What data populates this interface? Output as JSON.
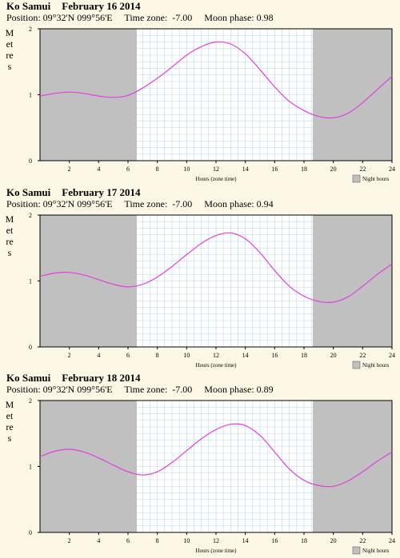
{
  "legend_label": "Night hours",
  "colors": {
    "background": "#fdf8e6",
    "night": "#c0c0c0",
    "grid": "#b8d4ef",
    "curve": "#e040e0"
  },
  "chart_data": [
    {
      "type": "line",
      "place": "Ko Samui",
      "date": "February 16 2014",
      "position": "Position: 09°32'N 099°56'E",
      "timezone": "Time zone:  -7.00",
      "moon": "Moon phase: 0.98",
      "xlabel": "Hours (zone time)",
      "ylabel": "Metres",
      "xlim": [
        0,
        24
      ],
      "ylim": [
        0,
        2
      ],
      "x_ticks": [
        2,
        4,
        6,
        8,
        10,
        12,
        14,
        16,
        18,
        20,
        22,
        24
      ],
      "y_ticks": [
        0,
        1,
        2
      ],
      "night": [
        [
          0,
          6.6
        ],
        [
          18.6,
          24
        ]
      ],
      "series": [
        {
          "x": [
            0,
            1,
            2,
            3,
            4,
            5,
            6,
            7,
            8,
            9,
            10,
            11,
            12,
            13,
            14,
            15,
            16,
            17,
            18,
            19,
            20,
            21,
            22,
            23,
            24
          ],
          "y": [
            0.98,
            1.02,
            1.04,
            1.02,
            0.98,
            0.96,
            0.99,
            1.1,
            1.25,
            1.42,
            1.6,
            1.73,
            1.8,
            1.77,
            1.62,
            1.38,
            1.12,
            0.9,
            0.76,
            0.67,
            0.65,
            0.72,
            0.88,
            1.08,
            1.28
          ]
        }
      ]
    },
    {
      "type": "line",
      "place": "Ko Samui",
      "date": "February 17 2014",
      "position": "Position: 09°32'N 099°56'E",
      "timezone": "Time zone:  -7.00",
      "moon": "Moon phase: 0.94",
      "xlabel": "Hours (zone time)",
      "ylabel": "Metres",
      "xlim": [
        0,
        24
      ],
      "ylim": [
        0,
        2
      ],
      "x_ticks": [
        2,
        4,
        6,
        8,
        10,
        12,
        14,
        16,
        18,
        20,
        22,
        24
      ],
      "y_ticks": [
        0,
        1,
        2
      ],
      "night": [
        [
          0,
          6.6
        ],
        [
          18.6,
          24
        ]
      ],
      "series": [
        {
          "x": [
            0,
            1,
            2,
            3,
            4,
            5,
            6,
            7,
            8,
            9,
            10,
            11,
            12,
            13,
            14,
            15,
            16,
            17,
            18,
            19,
            20,
            21,
            22,
            23,
            24
          ],
          "y": [
            1.07,
            1.12,
            1.13,
            1.09,
            1.02,
            0.95,
            0.91,
            0.95,
            1.06,
            1.22,
            1.4,
            1.57,
            1.69,
            1.73,
            1.64,
            1.43,
            1.16,
            0.92,
            0.77,
            0.69,
            0.68,
            0.76,
            0.92,
            1.1,
            1.26
          ]
        }
      ]
    },
    {
      "type": "line",
      "place": "Ko Samui",
      "date": "February 18 2014",
      "position": "Position: 09°32'N 099°56'E",
      "timezone": "Time zone:  -7.00",
      "moon": "Moon phase: 0.89",
      "xlabel": "Hours (zone time)",
      "ylabel": "Metres",
      "xlim": [
        0,
        24
      ],
      "ylim": [
        0,
        2
      ],
      "x_ticks": [
        2,
        4,
        6,
        8,
        10,
        12,
        14,
        16,
        18,
        20,
        22,
        24
      ],
      "y_ticks": [
        0,
        1,
        2
      ],
      "night": [
        [
          0,
          6.6
        ],
        [
          18.6,
          24
        ]
      ],
      "series": [
        {
          "x": [
            0,
            1,
            2,
            3,
            4,
            5,
            6,
            7,
            8,
            9,
            10,
            11,
            12,
            13,
            14,
            15,
            16,
            17,
            18,
            19,
            20,
            21,
            22,
            23,
            24
          ],
          "y": [
            1.15,
            1.23,
            1.26,
            1.22,
            1.13,
            1.02,
            0.92,
            0.87,
            0.92,
            1.06,
            1.24,
            1.42,
            1.56,
            1.64,
            1.62,
            1.47,
            1.22,
            0.96,
            0.79,
            0.71,
            0.7,
            0.78,
            0.92,
            1.08,
            1.22
          ]
        }
      ]
    }
  ]
}
